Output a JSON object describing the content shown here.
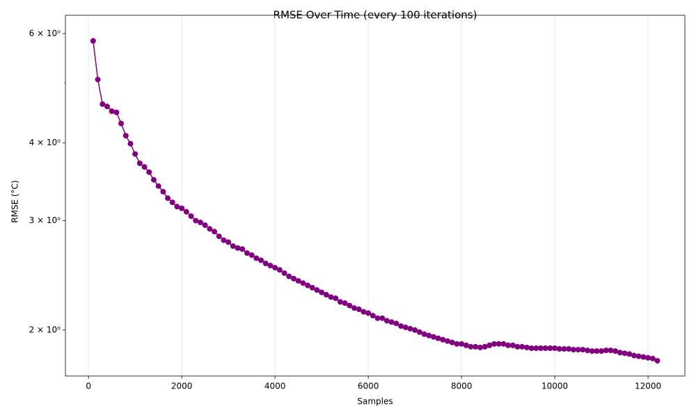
{
  "chart_data": {
    "type": "line",
    "title": "RMSE Over Time (every 100 iterations)",
    "x_label": "Samples",
    "y_label": "RMSE (°C)",
    "x": [
      100,
      200,
      300,
      400,
      500,
      600,
      700,
      800,
      900,
      1000,
      1100,
      1200,
      1300,
      1400,
      1500,
      1600,
      1700,
      1800,
      1900,
      2000,
      2100,
      2200,
      2300,
      2400,
      2500,
      2600,
      2700,
      2800,
      2900,
      3000,
      3100,
      3200,
      3300,
      3400,
      3500,
      3600,
      3700,
      3800,
      3900,
      4000,
      4100,
      4200,
      4300,
      4400,
      4500,
      4600,
      4700,
      4800,
      4900,
      5000,
      5100,
      5200,
      5300,
      5400,
      5500,
      5600,
      5700,
      5800,
      5900,
      6000,
      6100,
      6200,
      6300,
      6400,
      6500,
      6600,
      6700,
      6800,
      6900,
      7000,
      7100,
      7200,
      7300,
      7400,
      7500,
      7600,
      7700,
      7800,
      7900,
      8000,
      8100,
      8200,
      8300,
      8400,
      8500,
      8600,
      8700,
      8800,
      8900,
      9000,
      9100,
      9200,
      9300,
      9400,
      9500,
      9600,
      9700,
      9800,
      9900,
      10000,
      10100,
      10200,
      10300,
      10400,
      10500,
      10600,
      10700,
      10800,
      10900,
      11000,
      11100,
      11200,
      11300,
      11400,
      11500,
      11600,
      11700,
      11800,
      11900,
      12000,
      12100,
      12200
    ],
    "series": [
      {
        "name": "RMSE",
        "color": "#800080",
        "values": [
          5.84,
          5.06,
          4.62,
          4.58,
          4.5,
          4.48,
          4.3,
          4.11,
          3.99,
          3.84,
          3.71,
          3.66,
          3.59,
          3.49,
          3.41,
          3.34,
          3.26,
          3.21,
          3.16,
          3.14,
          3.1,
          3.05,
          3.0,
          2.98,
          2.95,
          2.91,
          2.88,
          2.83,
          2.79,
          2.77,
          2.73,
          2.71,
          2.7,
          2.66,
          2.64,
          2.61,
          2.59,
          2.56,
          2.54,
          2.52,
          2.5,
          2.47,
          2.44,
          2.42,
          2.4,
          2.38,
          2.36,
          2.34,
          2.32,
          2.3,
          2.28,
          2.26,
          2.25,
          2.22,
          2.21,
          2.19,
          2.17,
          2.16,
          2.14,
          2.13,
          2.11,
          2.09,
          2.09,
          2.07,
          2.06,
          2.05,
          2.03,
          2.02,
          2.01,
          2.0,
          1.985,
          1.97,
          1.96,
          1.95,
          1.94,
          1.93,
          1.92,
          1.91,
          1.9,
          1.9,
          1.89,
          1.88,
          1.88,
          1.875,
          1.88,
          1.89,
          1.9,
          1.9,
          1.9,
          1.89,
          1.89,
          1.88,
          1.88,
          1.875,
          1.87,
          1.87,
          1.87,
          1.87,
          1.87,
          1.87,
          1.865,
          1.865,
          1.865,
          1.86,
          1.86,
          1.86,
          1.855,
          1.85,
          1.85,
          1.85,
          1.855,
          1.855,
          1.85,
          1.84,
          1.835,
          1.83,
          1.82,
          1.815,
          1.81,
          1.805,
          1.8,
          1.785
        ]
      }
    ],
    "xlim": [
      -495,
      12790
    ],
    "xticks": [
      0,
      2000,
      4000,
      6000,
      8000,
      10000,
      12000
    ],
    "ylim": [
      1.687,
      6.42
    ],
    "y_log": true,
    "yticks": [
      {
        "value": 2,
        "label": "2 × 10⁰"
      },
      {
        "value": 3,
        "label": "3 × 10⁰"
      },
      {
        "value": 4,
        "label": "4 × 10⁰"
      },
      {
        "value": 6,
        "label": "6 × 10⁰"
      }
    ],
    "y_minor_ticks": [
      5
    ],
    "grid": "x",
    "markers": true
  }
}
